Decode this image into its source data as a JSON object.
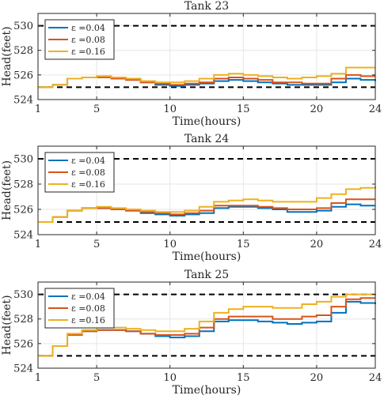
{
  "chart_data": [
    {
      "type": "line",
      "title": "Tank 23",
      "xlabel": "Time(hours)",
      "ylabel": "Head(feet)",
      "xlim": [
        1,
        24
      ],
      "ylim": [
        524,
        531
      ],
      "xticks": [
        1,
        5,
        10,
        15,
        20,
        24
      ],
      "yticks": [
        524,
        526,
        528,
        530
      ],
      "grid": true,
      "legend_position": "top-left",
      "bounds": [
        525,
        530
      ],
      "series": [
        {
          "name": "ε =0.04",
          "color": "#0072BD",
          "values": [
            525.0,
            525.2,
            525.7,
            525.8,
            525.8,
            525.7,
            525.6,
            525.4,
            525.2,
            525.1,
            525.2,
            525.3,
            525.5,
            525.6,
            525.5,
            525.4,
            525.3,
            525.2,
            525.2,
            525.2,
            525.4,
            525.7,
            525.6,
            525.5
          ]
        },
        {
          "name": "ε =0.08",
          "color": "#D95319",
          "values": [
            525.0,
            525.2,
            525.7,
            525.8,
            525.8,
            525.7,
            525.6,
            525.4,
            525.3,
            525.2,
            525.3,
            525.4,
            525.7,
            525.8,
            525.7,
            525.6,
            525.4,
            525.4,
            525.3,
            525.3,
            525.7,
            526.0,
            525.9,
            525.9
          ]
        },
        {
          "name": "ε =0.16",
          "color": "#EDB120",
          "values": [
            525.0,
            525.2,
            525.7,
            525.8,
            525.9,
            525.8,
            525.7,
            525.5,
            525.4,
            525.4,
            525.5,
            525.7,
            526.0,
            526.1,
            526.0,
            525.9,
            525.8,
            525.7,
            525.8,
            525.9,
            526.1,
            526.6,
            526.6,
            526.6
          ]
        }
      ]
    },
    {
      "type": "line",
      "title": "Tank 24",
      "xlabel": "Time(hours)",
      "ylabel": "Head(feet)",
      "xlim": [
        1,
        24
      ],
      "ylim": [
        524,
        531
      ],
      "xticks": [
        1,
        5,
        10,
        15,
        20,
        24
      ],
      "yticks": [
        524,
        526,
        528,
        530
      ],
      "grid": true,
      "legend_position": "top-left",
      "bounds": [
        525,
        530
      ],
      "series": [
        {
          "name": "ε =0.04",
          "color": "#0072BD",
          "values": [
            525.0,
            525.4,
            525.9,
            526.1,
            526.1,
            526.0,
            525.9,
            525.7,
            525.6,
            525.5,
            525.6,
            525.7,
            526.1,
            526.2,
            526.2,
            526.1,
            526.0,
            525.8,
            525.8,
            525.9,
            526.2,
            526.4,
            526.3,
            526.3
          ]
        },
        {
          "name": "ε =0.08",
          "color": "#D95319",
          "values": [
            525.0,
            525.4,
            525.9,
            526.1,
            526.1,
            526.0,
            525.9,
            525.8,
            525.7,
            525.6,
            525.7,
            525.9,
            526.3,
            526.3,
            526.3,
            526.2,
            526.1,
            526.0,
            526.0,
            526.1,
            526.5,
            526.8,
            526.8,
            526.8
          ]
        },
        {
          "name": "ε =0.16",
          "color": "#EDB120",
          "values": [
            525.0,
            525.4,
            525.9,
            526.1,
            526.2,
            526.1,
            526.0,
            525.9,
            525.8,
            525.8,
            525.9,
            526.2,
            526.6,
            526.7,
            526.8,
            526.7,
            526.6,
            526.6,
            526.6,
            526.9,
            527.2,
            527.6,
            527.7,
            527.8
          ]
        }
      ]
    },
    {
      "type": "line",
      "title": "Tank 25",
      "xlabel": "Time(hours)",
      "ylabel": "Head(feet)",
      "xlim": [
        1,
        24
      ],
      "ylim": [
        524,
        531
      ],
      "xticks": [
        1,
        5,
        10,
        15,
        20,
        24
      ],
      "yticks": [
        524,
        526,
        528,
        530
      ],
      "grid": true,
      "legend_position": "top-left",
      "bounds": [
        525,
        530
      ],
      "series": [
        {
          "name": "ε =0.04",
          "color": "#0072BD",
          "values": [
            525.0,
            525.8,
            526.7,
            527.0,
            527.1,
            527.1,
            527.0,
            526.8,
            526.6,
            526.5,
            526.6,
            527.0,
            527.8,
            527.9,
            527.9,
            527.8,
            527.7,
            527.6,
            527.7,
            527.8,
            528.5,
            529.4,
            529.3,
            529.2
          ]
        },
        {
          "name": "ε =0.08",
          "color": "#D95319",
          "values": [
            525.0,
            525.8,
            526.7,
            527.0,
            527.1,
            527.1,
            527.0,
            526.8,
            526.7,
            526.7,
            526.8,
            527.3,
            528.0,
            528.2,
            528.2,
            528.2,
            528.0,
            528.0,
            528.2,
            528.3,
            529.0,
            529.6,
            529.7,
            529.7
          ]
        },
        {
          "name": "ε =0.16",
          "color": "#EDB120",
          "values": [
            525.0,
            525.8,
            526.8,
            527.1,
            527.3,
            527.3,
            527.2,
            527.1,
            527.0,
            527.0,
            527.2,
            527.8,
            528.5,
            528.8,
            529.0,
            529.0,
            528.9,
            528.9,
            529.2,
            529.4,
            529.8,
            530.0,
            530.0,
            529.9
          ]
        }
      ]
    }
  ]
}
